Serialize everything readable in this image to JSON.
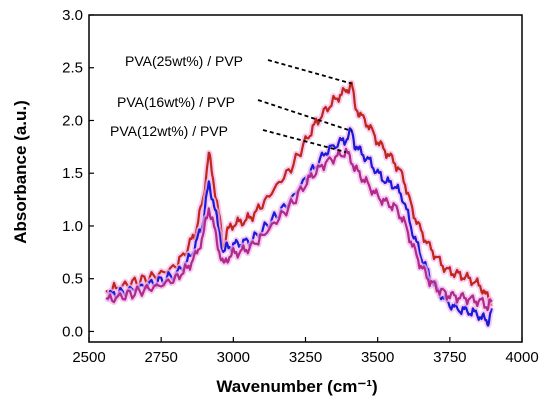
{
  "chart_data": {
    "type": "line",
    "xlabel": "Wavenumber (cm⁻¹)",
    "ylabel": "Absorbance (a.u.)",
    "xlim": [
      2500,
      4000
    ],
    "ylim": [
      -0.1,
      3.0
    ],
    "xticks": [
      "2500",
      "2750",
      "3000",
      "3250",
      "3500",
      "3750",
      "4000"
    ],
    "yticks": [
      "0.0",
      "0.5",
      "1.0",
      "1.5",
      "2.0",
      "2.5",
      "3.0"
    ],
    "grid": false,
    "series": [
      {
        "name": "PVA(25wt%) / PVP",
        "color": "#c0261a",
        "points": [
          [
            2560,
            0.38
          ],
          [
            2600,
            0.42
          ],
          [
            2650,
            0.46
          ],
          [
            2700,
            0.5
          ],
          [
            2750,
            0.55
          ],
          [
            2800,
            0.62
          ],
          [
            2840,
            0.78
          ],
          [
            2870,
            0.95
          ],
          [
            2895,
            1.25
          ],
          [
            2915,
            1.68
          ],
          [
            2930,
            1.45
          ],
          [
            2950,
            1.1
          ],
          [
            2965,
            0.82
          ],
          [
            2980,
            0.95
          ],
          [
            3000,
            1.02
          ],
          [
            3030,
            1.04
          ],
          [
            3060,
            1.08
          ],
          [
            3100,
            1.2
          ],
          [
            3150,
            1.38
          ],
          [
            3200,
            1.55
          ],
          [
            3250,
            1.8
          ],
          [
            3280,
            1.95
          ],
          [
            3320,
            2.1
          ],
          [
            3360,
            2.22
          ],
          [
            3390,
            2.28
          ],
          [
            3410,
            2.35
          ],
          [
            3420,
            2.15
          ],
          [
            3440,
            2.05
          ],
          [
            3470,
            1.95
          ],
          [
            3500,
            1.8
          ],
          [
            3530,
            1.7
          ],
          [
            3560,
            1.6
          ],
          [
            3590,
            1.45
          ],
          [
            3620,
            1.15
          ],
          [
            3650,
            0.95
          ],
          [
            3680,
            0.8
          ],
          [
            3710,
            0.68
          ],
          [
            3740,
            0.58
          ],
          [
            3770,
            0.55
          ],
          [
            3800,
            0.52
          ],
          [
            3830,
            0.48
          ],
          [
            3860,
            0.42
          ],
          [
            3880,
            0.32
          ],
          [
            3895,
            0.26
          ]
        ]
      },
      {
        "name": "PVA(16wt%) / PVP",
        "color": "#1a1ad8",
        "points": [
          [
            2560,
            0.34
          ],
          [
            2600,
            0.36
          ],
          [
            2650,
            0.4
          ],
          [
            2700,
            0.44
          ],
          [
            2750,
            0.48
          ],
          [
            2800,
            0.54
          ],
          [
            2840,
            0.66
          ],
          [
            2870,
            0.82
          ],
          [
            2895,
            1.05
          ],
          [
            2915,
            1.4
          ],
          [
            2930,
            1.25
          ],
          [
            2950,
            0.95
          ],
          [
            2965,
            0.75
          ],
          [
            2980,
            0.8
          ],
          [
            3000,
            0.82
          ],
          [
            3030,
            0.84
          ],
          [
            3060,
            0.86
          ],
          [
            3100,
            0.96
          ],
          [
            3150,
            1.1
          ],
          [
            3200,
            1.25
          ],
          [
            3250,
            1.45
          ],
          [
            3280,
            1.55
          ],
          [
            3320,
            1.7
          ],
          [
            3360,
            1.78
          ],
          [
            3390,
            1.82
          ],
          [
            3410,
            1.9
          ],
          [
            3420,
            1.78
          ],
          [
            3440,
            1.7
          ],
          [
            3470,
            1.62
          ],
          [
            3500,
            1.5
          ],
          [
            3530,
            1.42
          ],
          [
            3560,
            1.38
          ],
          [
            3590,
            1.25
          ],
          [
            3620,
            0.95
          ],
          [
            3650,
            0.72
          ],
          [
            3680,
            0.52
          ],
          [
            3710,
            0.38
          ],
          [
            3740,
            0.28
          ],
          [
            3770,
            0.22
          ],
          [
            3800,
            0.2
          ],
          [
            3830,
            0.18
          ],
          [
            3860,
            0.14
          ],
          [
            3880,
            0.08
          ],
          [
            3895,
            0.22
          ]
        ]
      },
      {
        "name": "PVA(12wt%) / PVP",
        "color": "#b02a8a",
        "points": [
          [
            2560,
            0.3
          ],
          [
            2600,
            0.32
          ],
          [
            2650,
            0.36
          ],
          [
            2700,
            0.4
          ],
          [
            2750,
            0.44
          ],
          [
            2800,
            0.5
          ],
          [
            2840,
            0.6
          ],
          [
            2870,
            0.72
          ],
          [
            2895,
            0.9
          ],
          [
            2915,
            1.18
          ],
          [
            2930,
            1.02
          ],
          [
            2950,
            0.78
          ],
          [
            2965,
            0.62
          ],
          [
            2980,
            0.7
          ],
          [
            3000,
            0.74
          ],
          [
            3030,
            0.76
          ],
          [
            3060,
            0.8
          ],
          [
            3100,
            0.9
          ],
          [
            3150,
            1.05
          ],
          [
            3200,
            1.2
          ],
          [
            3250,
            1.4
          ],
          [
            3280,
            1.5
          ],
          [
            3320,
            1.6
          ],
          [
            3360,
            1.66
          ],
          [
            3390,
            1.7
          ],
          [
            3410,
            1.62
          ],
          [
            3420,
            1.55
          ],
          [
            3440,
            1.48
          ],
          [
            3470,
            1.38
          ],
          [
            3500,
            1.28
          ],
          [
            3530,
            1.22
          ],
          [
            3560,
            1.18
          ],
          [
            3590,
            1.05
          ],
          [
            3620,
            0.82
          ],
          [
            3650,
            0.62
          ],
          [
            3680,
            0.48
          ],
          [
            3710,
            0.4
          ],
          [
            3740,
            0.35
          ],
          [
            3770,
            0.33
          ],
          [
            3800,
            0.32
          ],
          [
            3830,
            0.3
          ],
          [
            3860,
            0.28
          ],
          [
            3880,
            0.24
          ],
          [
            3895,
            0.28
          ]
        ]
      }
    ]
  }
}
